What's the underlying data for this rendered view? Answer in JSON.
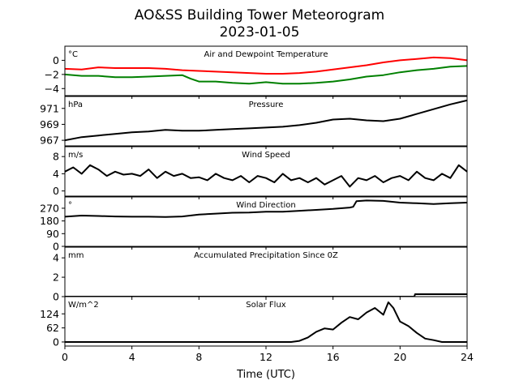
{
  "figure": {
    "title": "AO&SS Building Tower Meteorogram",
    "subtitle": "2023-01-05",
    "xlabel": "Time (UTC)"
  },
  "chart_data": [
    {
      "type": "line",
      "title": "Air and Dewpoint Temperature",
      "unit_label": "°C",
      "ylim": [
        -5,
        2
      ],
      "yticks": [
        0,
        -2,
        -4
      ],
      "ytick_labels": [
        "0",
        "−2",
        "−4"
      ],
      "xlim": [
        0,
        24
      ],
      "xticks": [
        0,
        4,
        8,
        12,
        16,
        20,
        24
      ],
      "series": [
        {
          "color": "#ff0000",
          "x": [
            0,
            1,
            2,
            3,
            4,
            5,
            6,
            7,
            8,
            9,
            10,
            11,
            12,
            13,
            14,
            15,
            16,
            17,
            18,
            19,
            20,
            21,
            22,
            23,
            24
          ],
          "y": [
            -1.2,
            -1.3,
            -1.0,
            -1.1,
            -1.1,
            -1.1,
            -1.2,
            -1.4,
            -1.5,
            -1.6,
            -1.7,
            -1.8,
            -1.9,
            -1.9,
            -1.8,
            -1.6,
            -1.3,
            -1.0,
            -0.7,
            -0.3,
            0.0,
            0.2,
            0.4,
            0.3,
            0.0
          ]
        },
        {
          "color": "#008000",
          "x": [
            0,
            1,
            2,
            3,
            4,
            5,
            6,
            7,
            7.5,
            8,
            9,
            10,
            11,
            12,
            13,
            14,
            15,
            16,
            17,
            18,
            19,
            20,
            21,
            22,
            23,
            24
          ],
          "y": [
            -2.0,
            -2.2,
            -2.2,
            -2.4,
            -2.4,
            -2.3,
            -2.2,
            -2.1,
            -2.6,
            -3.0,
            -3.0,
            -3.2,
            -3.3,
            -3.1,
            -3.3,
            -3.3,
            -3.2,
            -3.0,
            -2.7,
            -2.3,
            -2.1,
            -1.7,
            -1.4,
            -1.2,
            -0.9,
            -0.8
          ]
        }
      ]
    },
    {
      "type": "line",
      "title": "Pressure",
      "unit_label": "hPa",
      "ylim": [
        966.3,
        972.5
      ],
      "yticks": [
        967,
        969,
        971
      ],
      "ytick_labels": [
        "967",
        "969",
        "971"
      ],
      "xlim": [
        0,
        24
      ],
      "series": [
        {
          "color": "#000000",
          "x": [
            0,
            1,
            2,
            3,
            4,
            5,
            6,
            7,
            8,
            9,
            10,
            11,
            12,
            13,
            14,
            15,
            16,
            17,
            18,
            19,
            20,
            21,
            22,
            23,
            24
          ],
          "y": [
            967.0,
            967.4,
            967.6,
            967.8,
            968.0,
            968.1,
            968.3,
            968.2,
            968.2,
            968.3,
            968.4,
            968.5,
            968.6,
            968.7,
            968.9,
            969.2,
            969.6,
            969.7,
            969.5,
            969.4,
            969.7,
            970.3,
            970.9,
            971.5,
            972.0
          ]
        }
      ]
    },
    {
      "type": "line",
      "title": "Wind Speed",
      "unit_label": "m/s",
      "ylim": [
        -1.2,
        10.3
      ],
      "yticks": [
        0,
        4,
        8
      ],
      "ytick_labels": [
        "0",
        "4",
        "8"
      ],
      "xlim": [
        0,
        24
      ],
      "series": [
        {
          "color": "#000000",
          "x": [
            0,
            0.5,
            1,
            1.5,
            2,
            2.5,
            3,
            3.5,
            4,
            4.5,
            5,
            5.5,
            6,
            6.5,
            7,
            7.5,
            8,
            8.5,
            9,
            9.5,
            10,
            10.5,
            11,
            11.5,
            12,
            12.5,
            13,
            13.5,
            14,
            14.5,
            15,
            15.5,
            16,
            16.5,
            17,
            17.5,
            18,
            18.5,
            19,
            19.5,
            20,
            20.5,
            21,
            21.5,
            22,
            22.5,
            23,
            23.5,
            24
          ],
          "y": [
            4.5,
            5.5,
            4.0,
            6.0,
            5.0,
            3.5,
            4.5,
            3.8,
            4.0,
            3.5,
            5.0,
            3.0,
            4.5,
            3.5,
            4.0,
            3.0,
            3.2,
            2.5,
            4.0,
            3.0,
            2.5,
            3.5,
            2.0,
            3.5,
            3.0,
            2.0,
            4.0,
            2.5,
            3.0,
            2.0,
            3.0,
            1.5,
            2.5,
            3.5,
            1.0,
            3.0,
            2.5,
            3.5,
            2.0,
            3.0,
            3.5,
            2.5,
            4.5,
            3.0,
            2.5,
            4.0,
            3.0,
            6.0,
            4.5
          ]
        }
      ]
    },
    {
      "type": "line",
      "title": "Wind Direction",
      "unit_label": "°",
      "ylim": [
        0,
        350
      ],
      "yticks": [
        0,
        90,
        180,
        270
      ],
      "ytick_labels": [
        "0",
        "90",
        "180",
        "270"
      ],
      "xlim": [
        0,
        24
      ],
      "series": [
        {
          "color": "#000000",
          "x": [
            0,
            1,
            2,
            3,
            4,
            5,
            6,
            7,
            8,
            9,
            10,
            11,
            12,
            13,
            14,
            15,
            16,
            17,
            17.2,
            17.4,
            18,
            19,
            20,
            21,
            22,
            23,
            24
          ],
          "y": [
            210,
            218,
            215,
            212,
            210,
            210,
            208,
            212,
            225,
            232,
            238,
            240,
            245,
            245,
            252,
            258,
            265,
            275,
            280,
            320,
            325,
            322,
            310,
            305,
            300,
            305,
            310
          ]
        }
      ]
    },
    {
      "type": "line",
      "title": "Accumulated Precipitation Since 0Z",
      "unit_label": "mm",
      "ylim": [
        0,
        5.1
      ],
      "yticks": [
        0,
        2,
        4
      ],
      "ytick_labels": [
        "0",
        "2",
        "4"
      ],
      "xlim": [
        0,
        24
      ],
      "series": [
        {
          "color": "#000000",
          "x": [
            0,
            20.85,
            20.9,
            24
          ],
          "y": [
            0,
            0,
            0.25,
            0.25
          ]
        }
      ]
    },
    {
      "type": "line",
      "title": "Solar Flux",
      "unit_label": "W/m^2",
      "ylim": [
        -18,
        200
      ],
      "yticks": [
        0,
        62,
        124
      ],
      "ytick_labels": [
        "0",
        "62",
        "124"
      ],
      "xlim": [
        0,
        24
      ],
      "series": [
        {
          "color": "#000000",
          "x": [
            0,
            13.5,
            14,
            14.5,
            15,
            15.5,
            16,
            16.5,
            17,
            17.5,
            18,
            18.5,
            19,
            19.3,
            19.6,
            20,
            20.5,
            21,
            21.5,
            22,
            22.5,
            23,
            24
          ],
          "y": [
            0,
            0,
            5,
            20,
            45,
            60,
            55,
            85,
            110,
            100,
            130,
            150,
            120,
            175,
            150,
            90,
            70,
            40,
            15,
            8,
            0,
            0,
            0
          ]
        }
      ]
    }
  ]
}
